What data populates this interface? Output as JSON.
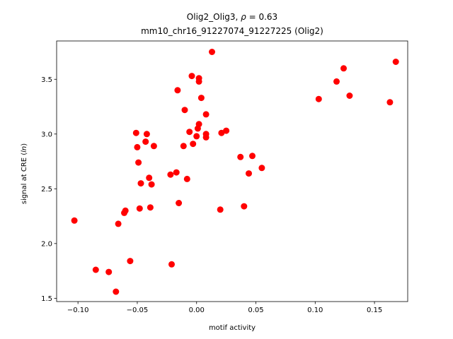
{
  "chart_data": {
    "type": "scatter",
    "title_line1_prefix": "Olig2_Olig3, ",
    "title_line1_symbol": "ρ",
    "title_line1_suffix": " = 0.63",
    "title_line2": "mm10_chr16_91227074_91227225 (Olig2)",
    "xlabel": "motif activity",
    "ylabel_prefix": "signal at CRE (",
    "ylabel_italic": "ln",
    "ylabel_suffix": ")",
    "xlim": [
      -0.118,
      0.178
    ],
    "ylim": [
      1.47,
      3.85
    ],
    "xticks": [
      -0.1,
      -0.05,
      0.0,
      0.05,
      0.1,
      0.15
    ],
    "xtick_labels": [
      "−0.10",
      "−0.05",
      "0.00",
      "0.05",
      "0.10",
      "0.15"
    ],
    "yticks": [
      1.5,
      2.0,
      2.5,
      3.0,
      3.5
    ],
    "ytick_labels": [
      "1.5",
      "2.0",
      "2.5",
      "3.0",
      "3.5"
    ],
    "grid": false,
    "marker_color": "#ff0000",
    "points": [
      {
        "x": -0.103,
        "y": 2.21
      },
      {
        "x": -0.085,
        "y": 1.76
      },
      {
        "x": -0.074,
        "y": 1.74
      },
      {
        "x": -0.068,
        "y": 1.56
      },
      {
        "x": -0.066,
        "y": 2.18
      },
      {
        "x": -0.061,
        "y": 2.28
      },
      {
        "x": -0.06,
        "y": 2.3
      },
      {
        "x": -0.056,
        "y": 1.84
      },
      {
        "x": -0.051,
        "y": 3.01
      },
      {
        "x": -0.05,
        "y": 2.88
      },
      {
        "x": -0.049,
        "y": 2.74
      },
      {
        "x": -0.048,
        "y": 2.32
      },
      {
        "x": -0.047,
        "y": 2.55
      },
      {
        "x": -0.043,
        "y": 2.93
      },
      {
        "x": -0.042,
        "y": 3.0
      },
      {
        "x": -0.04,
        "y": 2.6
      },
      {
        "x": -0.039,
        "y": 2.33
      },
      {
        "x": -0.038,
        "y": 2.54
      },
      {
        "x": -0.036,
        "y": 2.89
      },
      {
        "x": -0.022,
        "y": 2.63
      },
      {
        "x": -0.021,
        "y": 1.81
      },
      {
        "x": -0.017,
        "y": 2.65
      },
      {
        "x": -0.016,
        "y": 3.4
      },
      {
        "x": -0.015,
        "y": 2.37
      },
      {
        "x": -0.011,
        "y": 2.89
      },
      {
        "x": -0.01,
        "y": 3.22
      },
      {
        "x": -0.008,
        "y": 2.59
      },
      {
        "x": -0.006,
        "y": 3.02
      },
      {
        "x": -0.004,
        "y": 3.53
      },
      {
        "x": -0.003,
        "y": 2.91
      },
      {
        "x": 0.0,
        "y": 2.98
      },
      {
        "x": 0.001,
        "y": 3.05
      },
      {
        "x": 0.002,
        "y": 3.09
      },
      {
        "x": 0.002,
        "y": 3.51
      },
      {
        "x": 0.002,
        "y": 3.48
      },
      {
        "x": 0.004,
        "y": 3.33
      },
      {
        "x": 0.008,
        "y": 3.0
      },
      {
        "x": 0.008,
        "y": 2.97
      },
      {
        "x": 0.008,
        "y": 3.18
      },
      {
        "x": 0.013,
        "y": 3.75
      },
      {
        "x": 0.02,
        "y": 2.31
      },
      {
        "x": 0.021,
        "y": 3.01
      },
      {
        "x": 0.025,
        "y": 3.03
      },
      {
        "x": 0.037,
        "y": 2.79
      },
      {
        "x": 0.04,
        "y": 2.34
      },
      {
        "x": 0.044,
        "y": 2.64
      },
      {
        "x": 0.047,
        "y": 2.8
      },
      {
        "x": 0.055,
        "y": 2.69
      },
      {
        "x": 0.103,
        "y": 3.32
      },
      {
        "x": 0.118,
        "y": 3.48
      },
      {
        "x": 0.124,
        "y": 3.6
      },
      {
        "x": 0.129,
        "y": 3.35
      },
      {
        "x": 0.163,
        "y": 3.29
      },
      {
        "x": 0.168,
        "y": 3.66
      }
    ]
  }
}
